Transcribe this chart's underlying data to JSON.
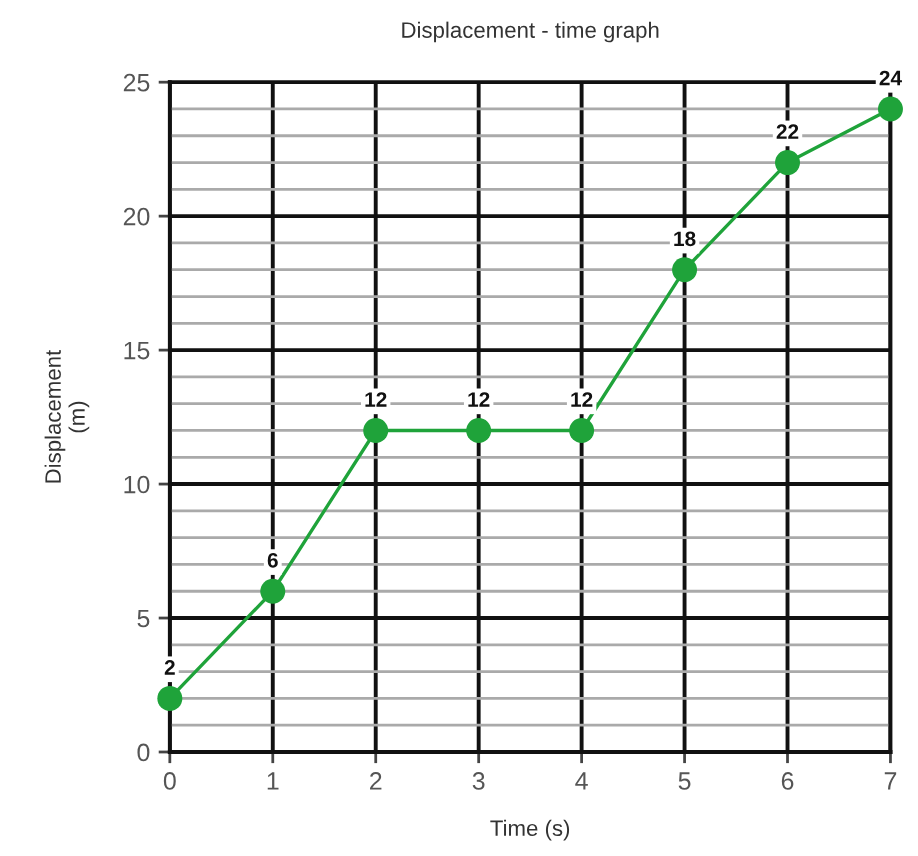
{
  "chart_data": {
    "type": "line",
    "title": "Displacement - time graph",
    "xlabel": "Time (s)",
    "ylabel": "Displacement\n(m)",
    "x": [
      0,
      1,
      2,
      3,
      4,
      5,
      6,
      7
    ],
    "series": [
      {
        "color": "#1fa33a",
        "values": [
          2,
          6,
          12,
          12,
          12,
          18,
          22,
          24
        ]
      }
    ],
    "xlim": [
      0,
      7
    ],
    "xticks": [
      0,
      1,
      2,
      3,
      4,
      5,
      6,
      7
    ],
    "ylim": [
      0,
      25
    ],
    "yticks": [
      0,
      {
        "value": 1,
        "label": null
      },
      {
        "value": 2,
        "label": null
      },
      {
        "value": 3,
        "label": null
      },
      {
        "value": 4,
        "label": null
      },
      5,
      {
        "value": 6,
        "label": null
      },
      {
        "value": 7,
        "label": null
      },
      {
        "value": 8,
        "label": null
      },
      {
        "value": 9,
        "label": null
      },
      10,
      {
        "value": 11,
        "label": null
      },
      {
        "value": 12,
        "label": null
      },
      {
        "value": 13,
        "label": null
      },
      {
        "value": 14,
        "label": null
      },
      15,
      {
        "value": 16,
        "label": null
      },
      {
        "value": 17,
        "label": null
      },
      {
        "value": 18,
        "label": null
      },
      {
        "value": 19,
        "label": null
      },
      20,
      {
        "value": 21,
        "label": null
      },
      {
        "value": 22,
        "label": null
      },
      {
        "value": 23,
        "label": null
      },
      {
        "value": 24,
        "label": null
      },
      25
    ],
    "grid": true,
    "marker": "circle",
    "line_style": "solid",
    "data_labels": true
  }
}
